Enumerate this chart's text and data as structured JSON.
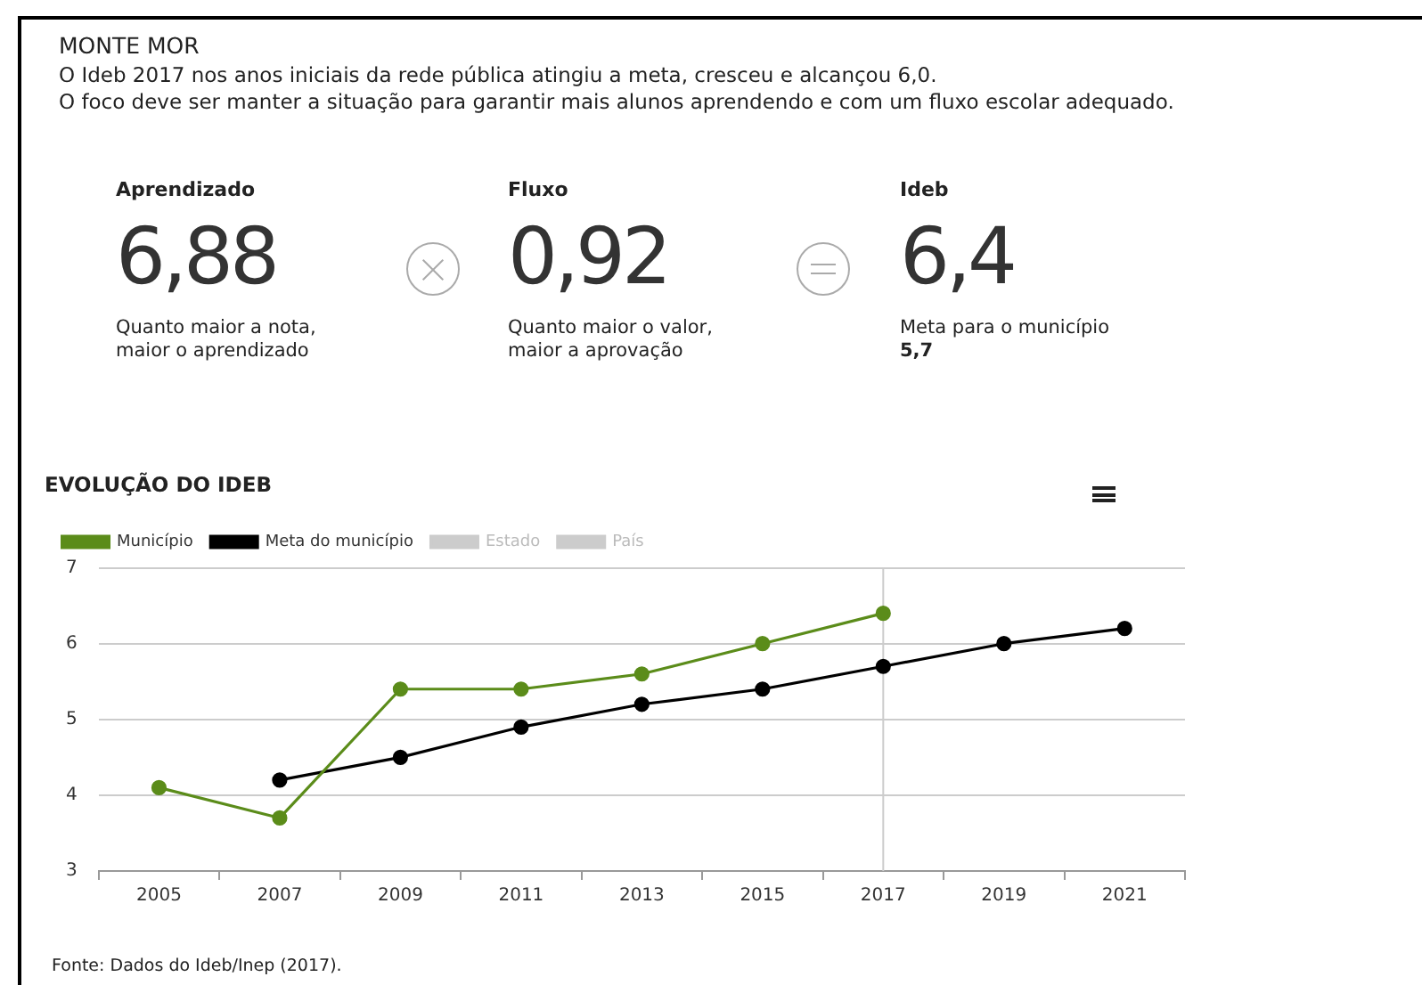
{
  "chart_data": [
    {
      "type": "other",
      "title": "MONTE MOR",
      "subtitle": "O Ideb 2017 nos anos iniciais da rede pública atingiu a meta, cresceu e alcançou 6,0.\nO foco deve ser manter a situação para garantir mais alunos aprendendo e com um fluxo escolar adequado.",
      "annotations": [
        "Aprendizado",
        "6,88",
        "Quanto maior a nota, maior o aprendizado",
        "Fluxo",
        "0,92",
        "Quanto maior o valor, maior a aprovação",
        "Ideb",
        "6,4",
        "Meta para o município",
        "5,7"
      ]
    },
    {
      "type": "line",
      "title": "EVOLUÇÃO DO IDEB",
      "categories": [
        "2005",
        "2007",
        "2009",
        "2011",
        "2013",
        "2015",
        "2017",
        "2019",
        "2021"
      ],
      "series": [
        {
          "name": "Município",
          "color": "#5b8c1a",
          "values": [
            4.1,
            3.7,
            5.4,
            5.4,
            5.6,
            6.0,
            6.4,
            null,
            null
          ]
        },
        {
          "name": "Meta do município",
          "color": "#000000",
          "values": [
            null,
            4.2,
            4.5,
            4.9,
            5.2,
            5.4,
            5.7,
            6.0,
            6.2
          ]
        },
        {
          "name": "Estado",
          "color": "#cccccc",
          "values": [
            null,
            null,
            null,
            null,
            null,
            null,
            null,
            null,
            null
          ]
        },
        {
          "name": "País",
          "color": "#cccccc",
          "values": [
            null,
            null,
            null,
            null,
            null,
            null,
            null,
            null,
            null
          ]
        }
      ],
      "ylim": [
        3,
        7
      ],
      "yticks": [
        3,
        4,
        5,
        6,
        7
      ],
      "grid": "y",
      "legend": "top left",
      "marker": "circle",
      "line_style": "solid",
      "ref_lines": [
        {
          "axis": "x",
          "value": "2017",
          "color": "#cccccc"
        }
      ],
      "annotations": [
        "Fonte: Dados do Ideb/Inep (2017)."
      ]
    }
  ]
}
